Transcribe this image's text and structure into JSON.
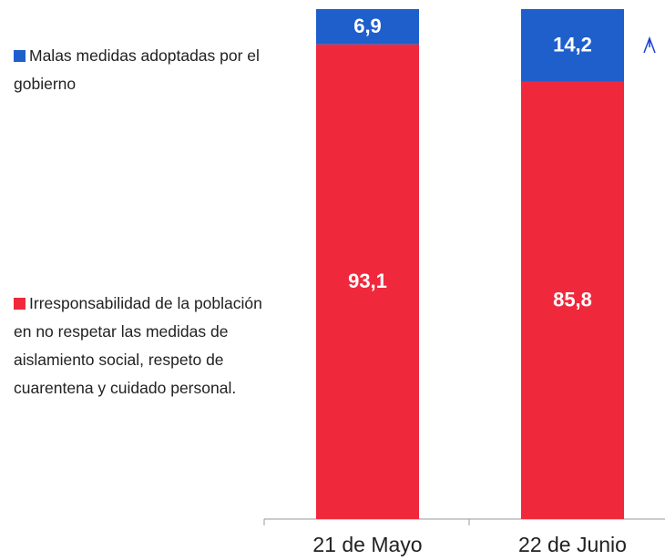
{
  "chart_data": {
    "type": "stacked_bar",
    "categories": [
      "21 de Mayo",
      "22 de Junio"
    ],
    "series": [
      {
        "name": "Malas medidas adoptadas por el gobierno",
        "color": "#1f5fcc",
        "values": [
          6.9,
          14.2
        ],
        "value_labels": [
          "6,9",
          "14,2"
        ]
      },
      {
        "name": "Irresponsabilidad de la población en no respetar las medidas de aislamiento social, respeto de cuarentena y cuidado personal.",
        "color": "#f0283c",
        "values": [
          93.1,
          85.8
        ],
        "value_labels": [
          "93,1",
          "85,8"
        ]
      }
    ],
    "ylim": [
      0,
      100
    ]
  }
}
